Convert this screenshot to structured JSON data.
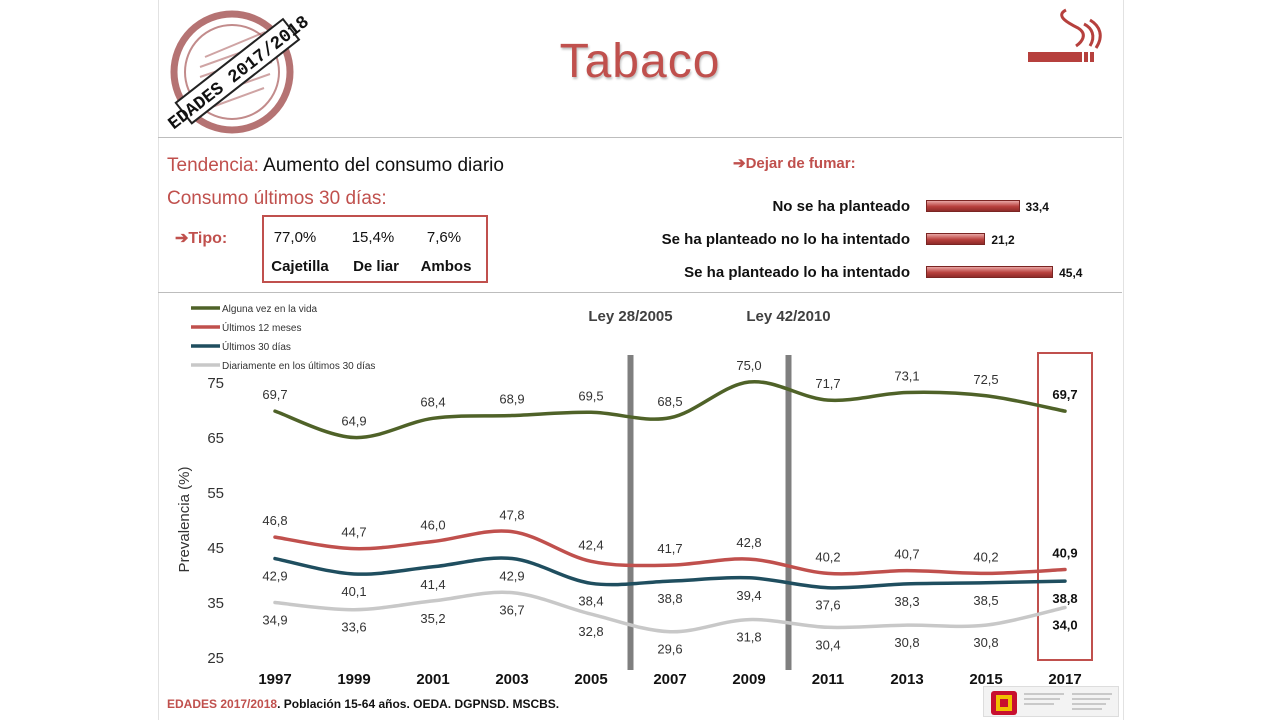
{
  "header": {
    "title": "Tabaco",
    "stamp_text": "EDADES 2017/2018"
  },
  "summary": {
    "tendencia_label": "Tendencia:",
    "tendencia_value": "Aumento del consumo diario",
    "consumo_label": "Consumo últimos 30 días:",
    "tipo_label": "➔Tipo:",
    "tipo": [
      {
        "value": "77,0%",
        "label": "Cajetilla"
      },
      {
        "value": "15,4%",
        "label": "De liar"
      },
      {
        "value": "7,6%",
        "label": "Ambos"
      }
    ]
  },
  "quit": {
    "title": "➔Dejar de fumar:",
    "items": [
      {
        "label": "No se ha planteado",
        "value": 33.4,
        "display": "33,4"
      },
      {
        "label": "Se ha planteado no lo ha intentado",
        "value": 21.2,
        "display": "21,2"
      },
      {
        "label": "Se ha planteado lo ha intentado",
        "value": 45.4,
        "display": "45,4"
      }
    ]
  },
  "chart_data": {
    "type": "line",
    "x": [
      "1997",
      "1999",
      "2001",
      "2003",
      "2005",
      "2007",
      "2009",
      "2011",
      "2013",
      "2015",
      "2017"
    ],
    "ylabel": "Prevalencia (%)",
    "xlabel": "",
    "ylim": [
      25,
      75
    ],
    "yticks": [
      25,
      35,
      45,
      55,
      65,
      75
    ],
    "legend_position": "top-left",
    "vertical_markers": [
      {
        "label": "Ley 28/2005",
        "between": [
          "2005",
          "2007"
        ]
      },
      {
        "label": "Ley 42/2010",
        "between": [
          "2009",
          "2011"
        ]
      }
    ],
    "highlight": "2017",
    "series": [
      {
        "name": "Alguna vez en la vida",
        "color": "#4f6228",
        "values": [
          69.7,
          64.9,
          68.4,
          68.9,
          69.5,
          68.5,
          75.0,
          71.7,
          73.1,
          72.5,
          69.7
        ],
        "labels": [
          "69,7",
          "64,9",
          "68,4",
          "68,9",
          "69,5",
          "68,5",
          "75,0",
          "71,7",
          "73,1",
          "72,5",
          "69,7"
        ],
        "label_pos": "above"
      },
      {
        "name": "Últimos 12 meses",
        "color": "#c0504d",
        "values": [
          46.8,
          44.7,
          46.0,
          47.8,
          42.4,
          41.7,
          42.8,
          40.2,
          40.7,
          40.2,
          40.9
        ],
        "labels": [
          "46,8",
          "44,7",
          "46,0",
          "47,8",
          "42,4",
          "41,7",
          "42,8",
          "40,2",
          "40,7",
          "40,2",
          "40,9"
        ],
        "label_pos": "above"
      },
      {
        "name": "Últimos 30 días",
        "color": "#1f4e5f",
        "values": [
          42.9,
          40.1,
          41.4,
          42.9,
          38.4,
          38.8,
          39.4,
          37.6,
          38.3,
          38.5,
          38.8
        ],
        "labels": [
          "42,9",
          "40,1",
          "41,4",
          "42,9",
          "38,4",
          "38,8",
          "39,4",
          "37,6",
          "38,3",
          "38,5",
          "38,8"
        ],
        "label_pos": "below"
      },
      {
        "name": "Diariamente en los últimos 30 días",
        "color": "#c8c8c8",
        "values": [
          34.9,
          33.6,
          35.2,
          36.7,
          32.8,
          29.6,
          31.8,
          30.4,
          30.8,
          30.8,
          34.0
        ],
        "labels": [
          "34,9",
          "33,6",
          "35,2",
          "36,7",
          "32,8",
          "29,6",
          "31,8",
          "30,4",
          "30,8",
          "30,8",
          "34,0"
        ],
        "label_pos": "below"
      }
    ]
  },
  "footer": {
    "source_bold": "EDADES 2017/2018",
    "source_rest": ". Población 15-64 años. OEDA. DGPNSD. MSCBS."
  },
  "colors": {
    "accent": "#c0504d",
    "dark_green": "#4f6228",
    "teal": "#1f4e5f",
    "grey": "#c8c8c8"
  },
  "icons": {
    "top_right": "cigarette-icon",
    "bottom_right": "spain-ministry-logo"
  }
}
